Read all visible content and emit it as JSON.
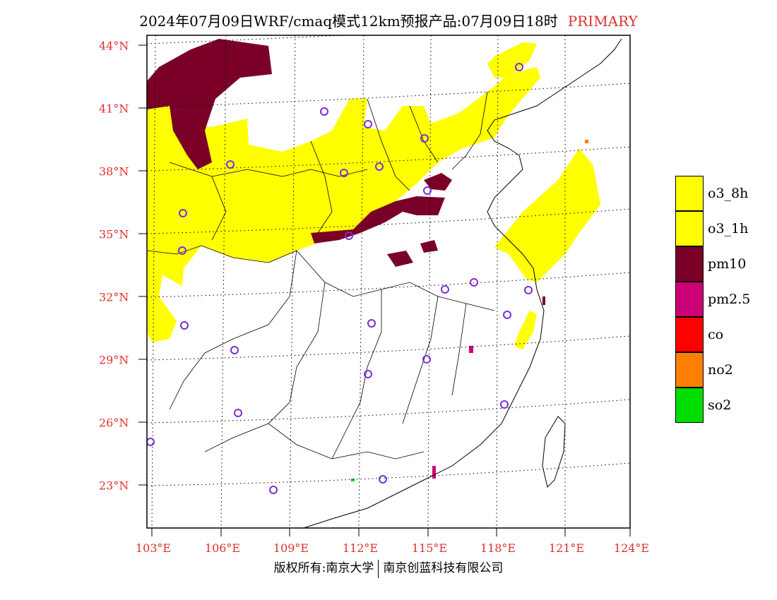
{
  "title": {
    "text": "2024年07月09日WRF/cmaq模式12km预报产品:07月09日18时",
    "tag": "PRIMARY"
  },
  "axes": {
    "lon_labels": [
      "103°E",
      "106°E",
      "109°E",
      "112°E",
      "115°E",
      "118°E",
      "121°E",
      "124°E"
    ],
    "lat_labels": [
      "44°N",
      "41°N",
      "38°N",
      "35°N",
      "32°N",
      "29°N",
      "26°N",
      "23°N"
    ]
  },
  "legend": {
    "items": [
      {
        "label": "o3_8h",
        "color": "#ffff00"
      },
      {
        "label": "o3_1h",
        "color": "#ffff00"
      },
      {
        "label": "pm10",
        "color": "#7a0028"
      },
      {
        "label": "pm2.5",
        "color": "#cc0077"
      },
      {
        "label": "co",
        "color": "#ff0000"
      },
      {
        "label": "no2",
        "color": "#ff7f00"
      },
      {
        "label": "so2",
        "color": "#00dd00"
      }
    ]
  },
  "footer": {
    "left": "版权所有:南京大学",
    "right": "南京创蓝科技有限公司"
  },
  "colors": {
    "ozone": "#ffff00",
    "pm10": "#7a0028",
    "pm25": "#cc0077",
    "no2": "#ff7f00",
    "so2": "#00dd00",
    "station": "#7b2fd6",
    "label_red": "#e03030"
  }
}
